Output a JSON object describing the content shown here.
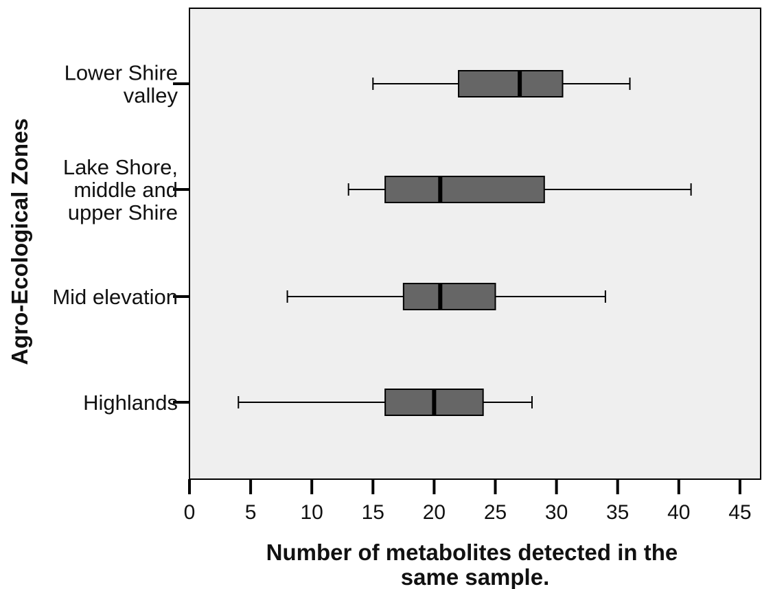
{
  "chart_data": {
    "type": "boxplot",
    "orientation": "horizontal",
    "xlabel_lines": [
      "Number of metabolites detected in the",
      "same sample."
    ],
    "ylabel": "Agro-Ecological Zones",
    "xlim": [
      0,
      46.5
    ],
    "xticks": [
      0,
      5,
      10,
      15,
      20,
      25,
      30,
      35,
      40,
      45
    ],
    "plot_background": "#efefef",
    "box_color": "#666666",
    "grid": false,
    "categories": [
      {
        "label_lines": [
          "Lower Shire",
          "valley"
        ],
        "min": 15,
        "q1": 22,
        "median": 27,
        "q3": 30.5,
        "max": 36
      },
      {
        "label_lines": [
          "Lake Shore,",
          "middle and",
          "upper Shire"
        ],
        "min": 13,
        "q1": 16,
        "median": 20.5,
        "q3": 29,
        "max": 41
      },
      {
        "label_lines": [
          "Mid elevation"
        ],
        "min": 8,
        "q1": 17.5,
        "median": 20.5,
        "q3": 25,
        "max": 34
      },
      {
        "label_lines": [
          "Highlands"
        ],
        "min": 4,
        "q1": 16,
        "median": 20,
        "q3": 24,
        "max": 28
      }
    ]
  }
}
